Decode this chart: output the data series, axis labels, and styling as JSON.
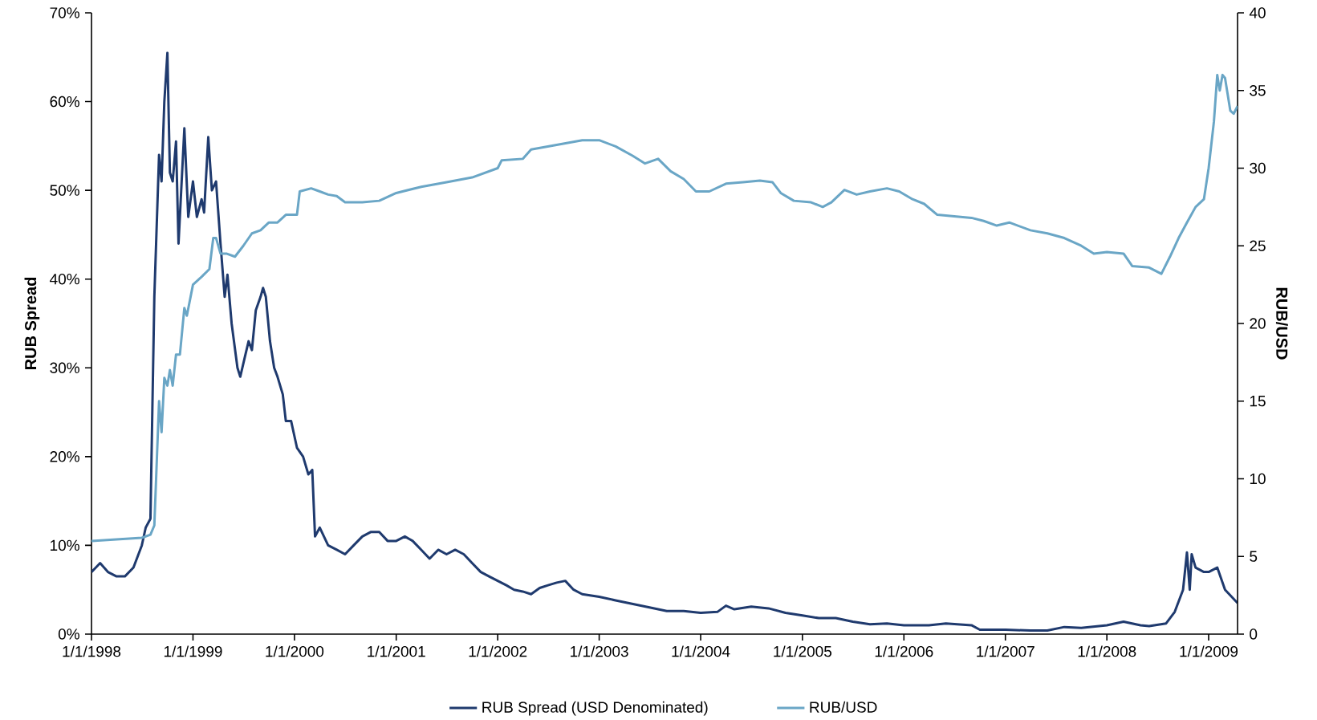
{
  "chart_data": {
    "type": "line",
    "ylabel": "RUB Spread",
    "y2label": "RUB/USD",
    "xlim": [
      "1998-01-01",
      "2009-04-15"
    ],
    "xticks": [
      {
        "value": "1998-01-01",
        "label": "1/1/1998"
      },
      {
        "value": "1999-01-01",
        "label": "1/1/1999"
      },
      {
        "value": "2000-01-01",
        "label": "1/1/2000"
      },
      {
        "value": "2001-01-01",
        "label": "1/1/2001"
      },
      {
        "value": "2002-01-01",
        "label": "1/1/2002"
      },
      {
        "value": "2003-01-01",
        "label": "1/1/2003"
      },
      {
        "value": "2004-01-01",
        "label": "1/1/2004"
      },
      {
        "value": "2005-01-01",
        "label": "1/1/2005"
      },
      {
        "value": "2006-01-01",
        "label": "1/1/2006"
      },
      {
        "value": "2007-01-01",
        "label": "1/1/2007"
      },
      {
        "value": "2008-01-01",
        "label": "1/1/2008"
      },
      {
        "value": "2009-01-01",
        "label": "1/1/2009"
      }
    ],
    "ylim": [
      0,
      70
    ],
    "yticks": [
      {
        "value": 0,
        "label": "0%"
      },
      {
        "value": 10,
        "label": "10%"
      },
      {
        "value": 20,
        "label": "20%"
      },
      {
        "value": 30,
        "label": "30%"
      },
      {
        "value": 40,
        "label": "40%"
      },
      {
        "value": 50,
        "label": "50%"
      },
      {
        "value": 60,
        "label": "60%"
      },
      {
        "value": 70,
        "label": "70%"
      }
    ],
    "y2lim": [
      0,
      40
    ],
    "y2ticks": [
      0,
      5,
      10,
      15,
      20,
      25,
      30,
      35,
      40
    ],
    "legend": "bottom",
    "series": [
      {
        "name": "RUB Spread (USD Denominated)",
        "color": "#1f3a6e",
        "x": [
          "1998-01-01",
          "1998-02-01",
          "1998-03-01",
          "1998-04-01",
          "1998-05-01",
          "1998-06-01",
          "1998-07-01",
          "1998-07-15",
          "1998-08-01",
          "1998-08-15",
          "1998-09-01",
          "1998-09-10",
          "1998-09-20",
          "1998-10-01",
          "1998-10-10",
          "1998-10-20",
          "1998-11-01",
          "1998-11-10",
          "1998-12-01",
          "1998-12-15",
          "1999-01-01",
          "1999-01-15",
          "1999-02-01",
          "1999-02-10",
          "1999-02-25",
          "1999-03-10",
          "1999-03-25",
          "1999-04-10",
          "1999-04-25",
          "1999-05-05",
          "1999-05-20",
          "1999-06-10",
          "1999-06-20",
          "1999-07-05",
          "1999-07-20",
          "1999-08-01",
          "1999-08-15",
          "1999-09-01",
          "1999-09-10",
          "1999-09-20",
          "1999-10-05",
          "1999-10-20",
          "1999-11-01",
          "1999-11-20",
          "1999-12-01",
          "1999-12-20",
          "2000-01-10",
          "2000-02-01",
          "2000-02-20",
          "2000-03-05",
          "2000-03-15",
          "2000-04-01",
          "2000-05-01",
          "2000-06-01",
          "2000-07-01",
          "2000-08-01",
          "2000-09-01",
          "2000-10-01",
          "2000-11-01",
          "2000-12-01",
          "2001-01-01",
          "2001-02-01",
          "2001-03-01",
          "2001-04-01",
          "2001-05-01",
          "2001-06-01",
          "2001-07-01",
          "2001-08-01",
          "2001-09-01",
          "2001-10-01",
          "2001-11-01",
          "2001-12-01",
          "2002-01-01",
          "2002-02-01",
          "2002-03-01",
          "2002-04-01",
          "2002-05-01",
          "2002-06-01",
          "2002-07-01",
          "2002-08-01",
          "2002-09-01",
          "2002-10-01",
          "2002-11-01",
          "2003-01-01",
          "2003-03-01",
          "2003-05-01",
          "2003-07-01",
          "2003-09-01",
          "2003-11-01",
          "2004-01-01",
          "2004-03-01",
          "2004-04-01",
          "2004-05-01",
          "2004-07-01",
          "2004-09-01",
          "2004-11-01",
          "2005-01-01",
          "2005-03-01",
          "2005-05-01",
          "2005-07-01",
          "2005-09-01",
          "2005-11-01",
          "2006-01-01",
          "2006-04-01",
          "2006-06-01",
          "2006-09-01",
          "2006-10-01",
          "2007-01-01",
          "2007-04-01",
          "2007-06-01",
          "2007-08-01",
          "2007-10-01",
          "2008-01-01",
          "2008-03-01",
          "2008-05-01",
          "2008-06-01",
          "2008-08-01",
          "2008-09-01",
          "2008-10-01",
          "2008-10-15",
          "2008-10-25",
          "2008-11-01",
          "2008-11-15",
          "2008-12-15",
          "2009-01-01",
          "2009-02-01",
          "2009-03-01",
          "2009-04-15"
        ],
        "values": [
          7,
          8,
          7,
          6.5,
          6.5,
          7.5,
          10,
          12,
          13,
          38,
          54,
          51,
          60,
          65.5,
          52,
          51,
          55.5,
          44,
          57,
          47,
          51,
          47,
          49,
          47.5,
          56,
          50,
          51,
          44,
          38,
          40.5,
          35,
          30,
          29,
          31,
          33,
          32,
          36.5,
          38,
          39,
          38,
          33,
          30,
          29,
          27,
          24,
          24,
          21,
          20,
          18,
          18.5,
          11,
          12,
          10,
          9.5,
          9,
          10,
          11,
          11.5,
          11.5,
          10.5,
          10.5,
          11,
          10.5,
          9.5,
          8.5,
          9.5,
          9,
          9.5,
          9,
          8,
          7,
          6.5,
          6,
          5.5,
          5,
          4.8,
          4.5,
          5.2,
          5.5,
          5.8,
          6,
          5,
          4.5,
          4.2,
          3.8,
          3.4,
          3,
          2.6,
          2.6,
          2.4,
          2.5,
          3.2,
          2.8,
          3.1,
          2.9,
          2.4,
          2.1,
          1.8,
          1.8,
          1.4,
          1.1,
          1.2,
          1,
          1,
          1.2,
          1,
          0.5,
          0.5,
          0.4,
          0.4,
          0.8,
          0.7,
          1,
          1.4,
          1,
          0.9,
          1.2,
          2.5,
          5,
          9.2,
          5,
          9,
          7.5,
          7,
          7,
          7.5,
          5,
          3.5
        ]
      },
      {
        "name": "RUB/USD",
        "color": "#6aa6c6",
        "axis": "y2",
        "x": [
          "1998-01-01",
          "1998-04-01",
          "1998-07-01",
          "1998-08-01",
          "1998-08-15",
          "1998-09-01",
          "1998-09-10",
          "1998-09-20",
          "1998-10-01",
          "1998-10-10",
          "1998-10-20",
          "1998-11-01",
          "1998-11-15",
          "1998-12-01",
          "1998-12-10",
          "1999-01-01",
          "1999-02-01",
          "1999-03-01",
          "1999-03-15",
          "1999-03-25",
          "1999-04-10",
          "1999-05-01",
          "1999-06-01",
          "1999-07-01",
          "1999-08-01",
          "1999-09-01",
          "1999-10-01",
          "1999-11-01",
          "1999-12-01",
          "2000-01-10",
          "2000-01-20",
          "2000-03-01",
          "2000-04-01",
          "2000-05-01",
          "2000-06-01",
          "2000-07-01",
          "2000-09-01",
          "2000-11-01",
          "2001-01-01",
          "2001-04-01",
          "2001-07-01",
          "2001-10-01",
          "2002-01-01",
          "2002-01-15",
          "2002-04-01",
          "2002-05-01",
          "2002-08-01",
          "2002-11-01",
          "2003-01-01",
          "2003-03-01",
          "2003-05-01",
          "2003-06-15",
          "2003-08-01",
          "2003-09-15",
          "2003-11-01",
          "2003-12-15",
          "2004-02-01",
          "2004-04-01",
          "2004-06-01",
          "2004-08-01",
          "2004-09-15",
          "2004-10-15",
          "2004-12-01",
          "2005-02-01",
          "2005-03-15",
          "2005-04-15",
          "2005-06-01",
          "2005-07-15",
          "2005-09-01",
          "2005-11-01",
          "2005-12-15",
          "2006-02-01",
          "2006-03-15",
          "2006-05-01",
          "2006-07-01",
          "2006-09-01",
          "2006-10-15",
          "2006-12-01",
          "2007-01-15",
          "2007-04-01",
          "2007-06-01",
          "2007-08-01",
          "2007-10-01",
          "2007-11-15",
          "2008-01-01",
          "2008-03-01",
          "2008-04-01",
          "2008-06-01",
          "2008-07-15",
          "2008-08-15",
          "2008-09-15",
          "2008-10-15",
          "2008-11-15",
          "2008-12-15",
          "2009-01-01",
          "2009-01-20",
          "2009-02-01",
          "2009-02-10",
          "2009-02-20",
          "2009-03-01",
          "2009-03-20",
          "2009-04-01",
          "2009-04-15"
        ],
        "values": [
          6,
          6.1,
          6.2,
          6.4,
          7,
          15,
          13,
          16.5,
          16,
          17,
          16,
          18,
          18,
          21,
          20.5,
          22.5,
          23,
          23.5,
          25.5,
          25.5,
          24.5,
          24.5,
          24.3,
          25,
          25.8,
          26,
          26.5,
          26.5,
          27,
          27,
          28.5,
          28.7,
          28.5,
          28.3,
          28.2,
          27.8,
          27.8,
          27.9,
          28.4,
          28.8,
          29.1,
          29.4,
          30,
          30.5,
          30.6,
          31.2,
          31.5,
          31.8,
          31.8,
          31.4,
          30.8,
          30.3,
          30.6,
          29.8,
          29.3,
          28.5,
          28.5,
          29,
          29.1,
          29.2,
          29.1,
          28.4,
          27.9,
          27.8,
          27.5,
          27.8,
          28.6,
          28.3,
          28.5,
          28.7,
          28.5,
          28,
          27.7,
          27,
          26.9,
          26.8,
          26.6,
          26.3,
          26.5,
          26,
          25.8,
          25.5,
          25,
          24.5,
          24.6,
          24.5,
          23.7,
          23.6,
          23.2,
          24.3,
          25.5,
          26.5,
          27.5,
          28,
          30,
          33,
          36,
          35,
          36,
          35.8,
          33.7,
          33.5,
          34
        ]
      }
    ]
  }
}
